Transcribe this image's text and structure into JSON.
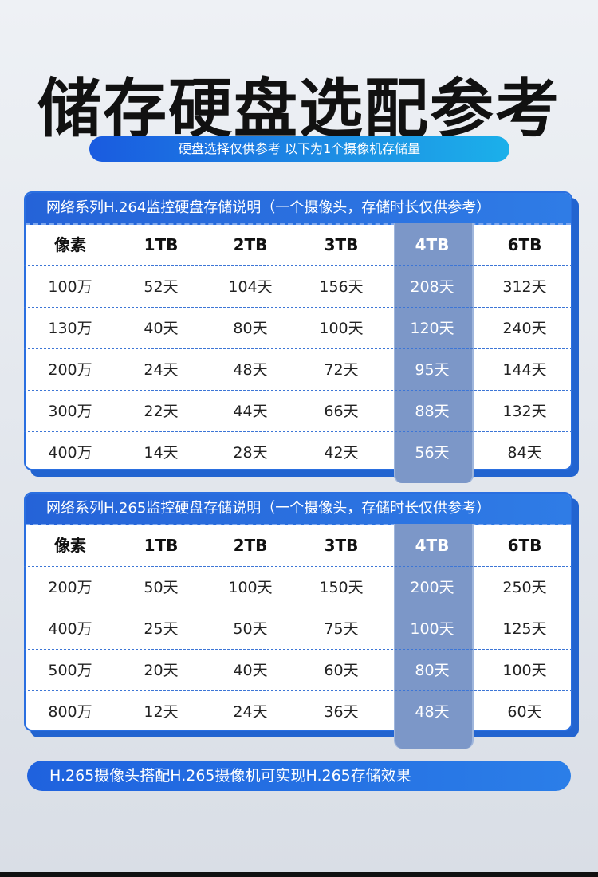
{
  "page_title": "储存硬盘选配参考",
  "subtitle": "硬盘选择仅供参考 以下为1个摄像机存储量",
  "tables": [
    {
      "header": "网络系列H.264监控硬盘存储说明（一个摄像头，存储时长仅供参考）",
      "columns": [
        "像素",
        "1TB",
        "2TB",
        "3TB",
        "4TB",
        "6TB"
      ],
      "rows": [
        [
          "100万",
          "52天",
          "104天",
          "156天",
          "208天",
          "312天"
        ],
        [
          "130万",
          "40天",
          "80天",
          "100天",
          "120天",
          "240天"
        ],
        [
          "200万",
          "24天",
          "48天",
          "72天",
          "95天",
          "144天"
        ],
        [
          "300万",
          "22天",
          "44天",
          "66天",
          "88天",
          "132天"
        ],
        [
          "400万",
          "14天",
          "28天",
          "42天",
          "56天",
          "84天"
        ]
      ]
    },
    {
      "header": "网络系列H.265监控硬盘存储说明（一个摄像头，存储时长仅供参考）",
      "columns": [
        "像素",
        "1TB",
        "2TB",
        "3TB",
        "4TB",
        "6TB"
      ],
      "rows": [
        [
          "200万",
          "50天",
          "100天",
          "150天",
          "200天",
          "250天"
        ],
        [
          "400万",
          "25天",
          "50天",
          "75天",
          "100天",
          "125天"
        ],
        [
          "500万",
          "20天",
          "40天",
          "60天",
          "80天",
          "100天"
        ],
        [
          "800万",
          "12天",
          "24天",
          "36天",
          "48天",
          "60天"
        ]
      ]
    }
  ],
  "highlight_column": "4TB",
  "footer_note": "H.265摄像头搭配H.265摄像机可实现H.265存储效果",
  "colors": {
    "accent": "#2563d8",
    "highlight": "#7c97c8",
    "text": "#111111"
  }
}
